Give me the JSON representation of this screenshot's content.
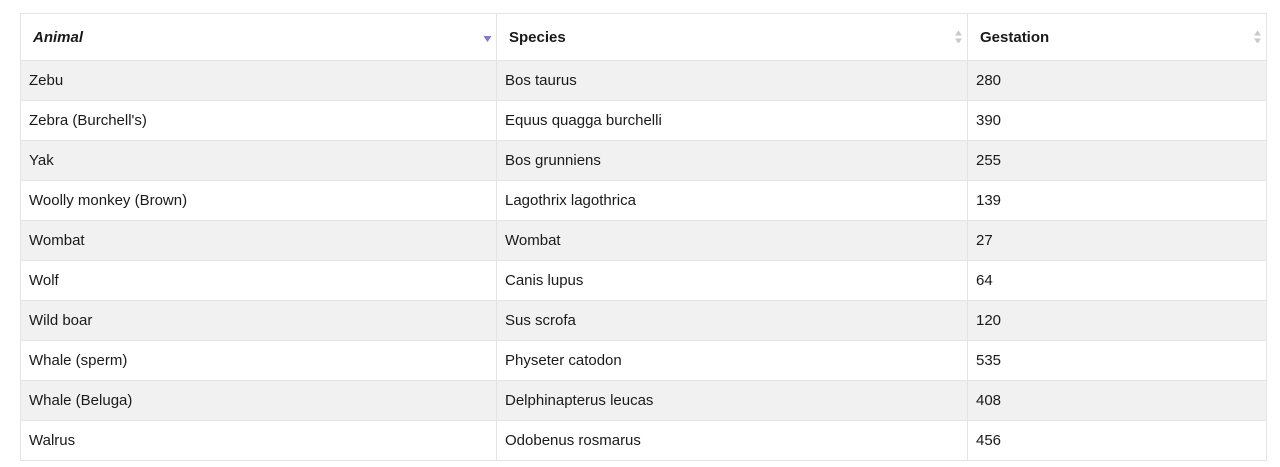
{
  "table": {
    "headers": [
      {
        "label": "Animal",
        "sort": "descending"
      },
      {
        "label": "Species",
        "sort": "none"
      },
      {
        "label": "Gestation",
        "sort": "none"
      }
    ],
    "rows": [
      [
        "Zebu",
        "Bos taurus",
        "280"
      ],
      [
        "Zebra (Burchell's)",
        "Equus quagga burchelli",
        "390"
      ],
      [
        "Yak",
        "Bos grunniens",
        "255"
      ],
      [
        "Woolly monkey (Brown)",
        "Lagothrix lagothrica",
        "139"
      ],
      [
        "Wombat",
        "Wombat",
        "27"
      ],
      [
        "Wolf",
        "Canis lupus",
        "64"
      ],
      [
        "Wild boar",
        "Sus scrofa",
        "120"
      ],
      [
        "Whale (sperm)",
        "Physeter catodon",
        "535"
      ],
      [
        "Whale (Beluga)",
        "Delphinapterus leucas",
        "408"
      ],
      [
        "Walrus",
        "Odobenus rosmarus",
        "456"
      ]
    ]
  },
  "icons": {
    "active_sort": "sort-descending-icon",
    "inactive_sort": "sort-both-icon"
  },
  "colors": {
    "active_sort_icon": "#7b7bd6",
    "inactive_sort_icon": "#c8c8c8",
    "striped_row": "#f1f1f1",
    "border": "#e4e4e4"
  }
}
